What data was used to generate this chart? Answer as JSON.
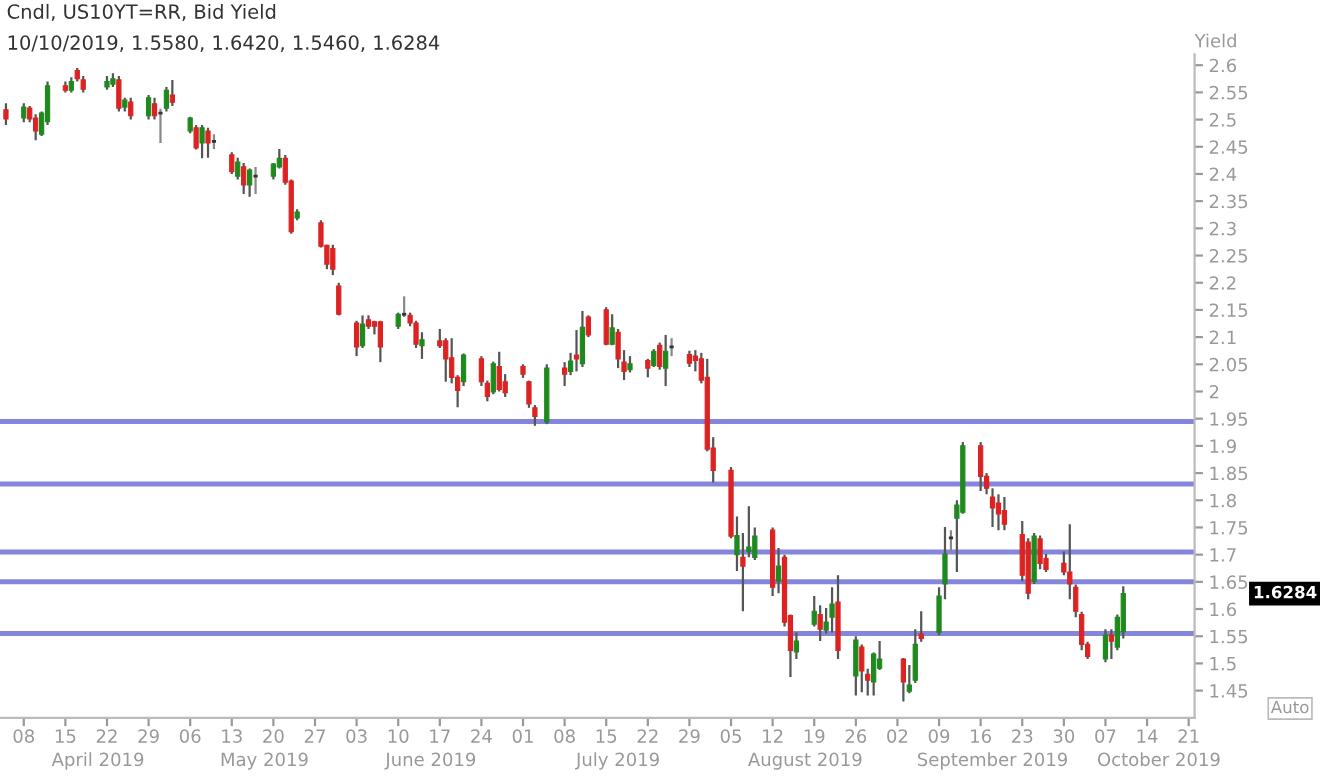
{
  "chart_data": {
    "type": "candlestick",
    "title": "Cndl, US10YT=RR, Bid Yield",
    "subtitle": "10/10/2019, 1.5580, 1.6420, 1.5460, 1.6284",
    "ylabel": "Yield",
    "x": [
      "2019-04-05",
      "2019-04-08",
      "2019-04-09",
      "2019-04-10",
      "2019-04-11",
      "2019-04-12",
      "2019-04-15",
      "2019-04-16",
      "2019-04-17",
      "2019-04-18",
      "2019-04-22",
      "2019-04-23",
      "2019-04-24",
      "2019-04-25",
      "2019-04-26",
      "2019-04-29",
      "2019-04-30",
      "2019-05-01",
      "2019-05-02",
      "2019-05-03",
      "2019-05-06",
      "2019-05-07",
      "2019-05-08",
      "2019-05-09",
      "2019-05-10",
      "2019-05-13",
      "2019-05-14",
      "2019-05-15",
      "2019-05-16",
      "2019-05-17",
      "2019-05-20",
      "2019-05-21",
      "2019-05-22",
      "2019-05-23",
      "2019-05-24",
      "2019-05-28",
      "2019-05-29",
      "2019-05-30",
      "2019-05-31",
      "2019-06-03",
      "2019-06-04",
      "2019-06-05",
      "2019-06-06",
      "2019-06-07",
      "2019-06-10",
      "2019-06-11",
      "2019-06-12",
      "2019-06-13",
      "2019-06-14",
      "2019-06-17",
      "2019-06-18",
      "2019-06-19",
      "2019-06-20",
      "2019-06-21",
      "2019-06-24",
      "2019-06-25",
      "2019-06-26",
      "2019-06-27",
      "2019-06-28",
      "2019-07-01",
      "2019-07-02",
      "2019-07-03",
      "2019-07-05",
      "2019-07-08",
      "2019-07-09",
      "2019-07-10",
      "2019-07-11",
      "2019-07-12",
      "2019-07-15",
      "2019-07-16",
      "2019-07-17",
      "2019-07-18",
      "2019-07-19",
      "2019-07-22",
      "2019-07-23",
      "2019-07-24",
      "2019-07-25",
      "2019-07-26",
      "2019-07-29",
      "2019-07-30",
      "2019-07-31",
      "2019-08-01",
      "2019-08-02",
      "2019-08-05",
      "2019-08-06",
      "2019-08-07",
      "2019-08-08",
      "2019-08-09",
      "2019-08-12",
      "2019-08-13",
      "2019-08-14",
      "2019-08-15",
      "2019-08-16",
      "2019-08-19",
      "2019-08-20",
      "2019-08-21",
      "2019-08-22",
      "2019-08-23",
      "2019-08-26",
      "2019-08-27",
      "2019-08-28",
      "2019-08-29",
      "2019-08-30",
      "2019-09-03",
      "2019-09-04",
      "2019-09-05",
      "2019-09-06",
      "2019-09-09",
      "2019-09-10",
      "2019-09-11",
      "2019-09-12",
      "2019-09-13",
      "2019-09-16",
      "2019-09-17",
      "2019-09-18",
      "2019-09-19",
      "2019-09-20",
      "2019-09-23",
      "2019-09-24",
      "2019-09-25",
      "2019-09-26",
      "2019-09-27",
      "2019-09-30",
      "2019-10-01",
      "2019-10-02",
      "2019-10-03",
      "2019-10-04",
      "2019-10-07",
      "2019-10-08",
      "2019-10-09",
      "2019-10-10"
    ],
    "ohlc": [
      [
        2.518,
        2.53,
        2.49,
        2.501
      ],
      [
        2.503,
        2.53,
        2.495,
        2.523
      ],
      [
        2.521,
        2.525,
        2.495,
        2.501
      ],
      [
        2.503,
        2.51,
        2.462,
        2.479
      ],
      [
        2.473,
        2.515,
        2.47,
        2.512
      ],
      [
        2.496,
        2.57,
        2.49,
        2.562
      ],
      [
        2.562,
        2.57,
        2.55,
        2.554
      ],
      [
        2.554,
        2.578,
        2.55,
        2.57
      ],
      [
        2.59,
        2.595,
        2.57,
        2.575
      ],
      [
        2.573,
        2.58,
        2.55,
        2.556
      ],
      [
        2.56,
        2.58,
        2.555,
        2.57
      ],
      [
        2.565,
        2.585,
        2.56,
        2.575
      ],
      [
        2.573,
        2.58,
        2.515,
        2.521
      ],
      [
        2.523,
        2.54,
        2.515,
        2.536
      ],
      [
        2.532,
        2.54,
        2.5,
        2.507
      ],
      [
        2.507,
        2.545,
        2.5,
        2.54
      ],
      [
        2.529,
        2.54,
        2.5,
        2.507
      ],
      [
        2.512,
        2.52,
        2.457,
        2.512
      ],
      [
        2.521,
        2.56,
        2.515,
        2.554
      ],
      [
        2.545,
        2.573,
        2.525,
        2.532
      ],
      [
        2.479,
        2.505,
        2.475,
        2.503
      ],
      [
        2.485,
        2.49,
        2.445,
        2.448
      ],
      [
        2.457,
        2.49,
        2.429,
        2.485
      ],
      [
        2.479,
        2.485,
        2.43,
        2.457
      ],
      [
        2.46,
        2.473,
        2.446,
        2.46
      ],
      [
        2.435,
        2.44,
        2.4,
        2.404
      ],
      [
        2.396,
        2.43,
        2.39,
        2.422
      ],
      [
        2.413,
        2.42,
        2.363,
        2.38
      ],
      [
        2.38,
        2.41,
        2.358,
        2.407
      ],
      [
        2.396,
        2.413,
        2.363,
        2.396
      ],
      [
        2.396,
        2.42,
        2.39,
        2.418
      ],
      [
        2.413,
        2.446,
        2.41,
        2.429
      ],
      [
        2.429,
        2.435,
        2.38,
        2.385
      ],
      [
        2.387,
        2.39,
        2.29,
        2.294
      ],
      [
        2.319,
        2.335,
        2.315,
        2.33
      ],
      [
        2.31,
        2.315,
        2.265,
        2.267
      ],
      [
        2.269,
        2.27,
        2.225,
        2.234
      ],
      [
        2.263,
        2.27,
        2.214,
        2.225
      ],
      [
        2.194,
        2.2,
        2.14,
        2.142
      ],
      [
        2.126,
        2.13,
        2.065,
        2.082
      ],
      [
        2.084,
        2.14,
        2.08,
        2.124
      ],
      [
        2.132,
        2.14,
        2.115,
        2.12
      ],
      [
        2.128,
        2.13,
        2.105,
        2.12
      ],
      [
        2.128,
        2.13,
        2.054,
        2.082
      ],
      [
        2.12,
        2.145,
        2.115,
        2.142
      ],
      [
        2.142,
        2.175,
        2.137,
        2.142
      ],
      [
        2.14,
        2.145,
        2.12,
        2.126
      ],
      [
        2.126,
        2.13,
        2.08,
        2.087
      ],
      [
        2.084,
        2.109,
        2.06,
        2.095
      ],
      [
        2.093,
        2.115,
        2.08,
        2.084
      ],
      [
        2.093,
        2.098,
        2.018,
        2.06
      ],
      [
        2.062,
        2.098,
        2.015,
        2.026
      ],
      [
        2.026,
        2.03,
        1.971,
        2.002
      ],
      [
        2.018,
        2.07,
        2.01,
        2.067
      ],
      [
        2.06,
        2.065,
        2.01,
        2.018
      ],
      [
        2.015,
        2.02,
        1.982,
        1.991
      ],
      [
        1.999,
        2.055,
        1.995,
        2.051
      ],
      [
        2.046,
        2.073,
        2.0,
        2.004
      ],
      [
        2.018,
        2.032,
        1.99,
        1.998
      ],
      [
        2.046,
        2.05,
        2.025,
        2.032
      ],
      [
        2.018,
        2.02,
        1.97,
        1.977
      ],
      [
        1.97,
        1.975,
        1.937,
        1.954
      ],
      [
        1.944,
        2.05,
        1.94,
        2.043
      ],
      [
        2.043,
        2.054,
        2.01,
        2.032
      ],
      [
        2.037,
        2.071,
        2.03,
        2.056
      ],
      [
        2.067,
        2.113,
        2.037,
        2.06
      ],
      [
        2.051,
        2.148,
        2.045,
        2.118
      ],
      [
        2.137,
        2.14,
        2.1,
        2.104
      ],
      [
        2.15,
        2.155,
        2.085,
        2.087
      ],
      [
        2.087,
        2.142,
        2.085,
        2.117
      ],
      [
        2.109,
        2.115,
        2.043,
        2.06
      ],
      [
        2.054,
        2.076,
        2.021,
        2.037
      ],
      [
        2.04,
        2.065,
        2.035,
        2.051
      ],
      [
        2.057,
        2.06,
        2.026,
        2.043
      ],
      [
        2.048,
        2.078,
        2.045,
        2.074
      ],
      [
        2.085,
        2.09,
        2.04,
        2.046
      ],
      [
        2.043,
        2.104,
        2.01,
        2.074
      ],
      [
        2.082,
        2.098,
        2.065,
        2.082
      ],
      [
        2.068,
        2.075,
        2.045,
        2.052
      ],
      [
        2.065,
        2.076,
        2.037,
        2.057
      ],
      [
        2.06,
        2.071,
        2.015,
        2.021
      ],
      [
        2.026,
        2.06,
        1.89,
        1.894
      ],
      [
        1.896,
        1.916,
        1.833,
        1.855
      ],
      [
        1.855,
        1.861,
        1.73,
        1.734
      ],
      [
        1.7,
        1.77,
        1.67,
        1.735
      ],
      [
        1.695,
        1.74,
        1.596,
        1.679
      ],
      [
        1.706,
        1.789,
        1.695,
        1.714
      ],
      [
        1.695,
        1.75,
        1.69,
        1.734
      ],
      [
        1.745,
        1.75,
        1.624,
        1.64
      ],
      [
        1.651,
        1.712,
        1.629,
        1.679
      ],
      [
        1.695,
        1.7,
        1.568,
        1.576
      ],
      [
        1.588,
        1.59,
        1.475,
        1.524
      ],
      [
        1.521,
        1.557,
        1.508,
        1.541
      ],
      [
        1.572,
        1.624,
        1.568,
        1.596
      ],
      [
        1.59,
        1.607,
        1.541,
        1.563
      ],
      [
        1.561,
        1.602,
        1.555,
        1.576
      ],
      [
        1.585,
        1.64,
        1.557,
        1.609
      ],
      [
        1.613,
        1.662,
        1.508,
        1.524
      ],
      [
        1.477,
        1.55,
        1.441,
        1.543
      ],
      [
        1.53,
        1.535,
        1.447,
        1.486
      ],
      [
        1.48,
        1.49,
        1.441,
        1.469
      ],
      [
        1.466,
        1.52,
        1.441,
        1.517
      ],
      [
        1.491,
        1.541,
        1.488,
        1.508
      ],
      [
        1.508,
        1.51,
        1.43,
        1.466
      ],
      [
        1.449,
        1.497,
        1.445,
        1.46
      ],
      [
        1.469,
        1.563,
        1.464,
        1.535
      ],
      [
        1.554,
        1.596,
        1.54,
        1.546
      ],
      [
        1.557,
        1.64,
        1.552,
        1.624
      ],
      [
        1.646,
        1.751,
        1.618,
        1.701
      ],
      [
        1.731,
        1.745,
        1.706,
        1.731
      ],
      [
        1.767,
        1.8,
        1.668,
        1.791
      ],
      [
        1.778,
        1.907,
        1.775,
        1.9
      ],
      [
        1.9,
        1.907,
        1.817,
        1.844
      ],
      [
        1.844,
        1.85,
        1.811,
        1.822
      ],
      [
        1.806,
        1.822,
        1.751,
        1.786
      ],
      [
        1.795,
        1.811,
        1.745,
        1.775
      ],
      [
        1.781,
        1.806,
        1.745,
        1.756
      ],
      [
        1.737,
        1.762,
        1.651,
        1.662
      ],
      [
        1.723,
        1.73,
        1.618,
        1.629
      ],
      [
        1.651,
        1.74,
        1.646,
        1.734
      ],
      [
        1.729,
        1.735,
        1.673,
        1.684
      ],
      [
        1.693,
        1.701,
        1.668,
        1.673
      ],
      [
        1.684,
        1.706,
        1.662,
        1.668
      ],
      [
        1.668,
        1.756,
        1.618,
        1.646
      ],
      [
        1.64,
        1.645,
        1.585,
        1.596
      ],
      [
        1.59,
        1.595,
        1.524,
        1.535
      ],
      [
        1.535,
        1.54,
        1.508,
        1.513
      ],
      [
        1.508,
        1.563,
        1.502,
        1.552
      ],
      [
        1.552,
        1.563,
        1.508,
        1.541
      ],
      [
        1.53,
        1.59,
        1.524,
        1.585
      ],
      [
        1.558,
        1.642,
        1.546,
        1.6284
      ]
    ],
    "xlim": [
      "2019-04-04",
      "2019-10-22"
    ],
    "ylim": [
      1.4,
      2.62
    ],
    "xticks": [
      {
        "value": "2019-04-08",
        "label": "08"
      },
      {
        "value": "2019-04-15",
        "label": "15"
      },
      {
        "value": "2019-04-22",
        "label": "22"
      },
      {
        "value": "2019-04-29",
        "label": "29"
      },
      {
        "value": "2019-05-06",
        "label": "06"
      },
      {
        "value": "2019-05-13",
        "label": "13"
      },
      {
        "value": "2019-05-20",
        "label": "20"
      },
      {
        "value": "2019-05-27",
        "label": "27"
      },
      {
        "value": "2019-06-03",
        "label": "03"
      },
      {
        "value": "2019-06-10",
        "label": "10"
      },
      {
        "value": "2019-06-17",
        "label": "17"
      },
      {
        "value": "2019-06-24",
        "label": "24"
      },
      {
        "value": "2019-07-01",
        "label": "01"
      },
      {
        "value": "2019-07-08",
        "label": "08"
      },
      {
        "value": "2019-07-15",
        "label": "15"
      },
      {
        "value": "2019-07-22",
        "label": "22"
      },
      {
        "value": "2019-07-29",
        "label": "29"
      },
      {
        "value": "2019-08-05",
        "label": "05"
      },
      {
        "value": "2019-08-12",
        "label": "12"
      },
      {
        "value": "2019-08-19",
        "label": "19"
      },
      {
        "value": "2019-08-26",
        "label": "26"
      },
      {
        "value": "2019-09-02",
        "label": "02"
      },
      {
        "value": "2019-09-09",
        "label": "09"
      },
      {
        "value": "2019-09-16",
        "label": "16"
      },
      {
        "value": "2019-09-23",
        "label": "23"
      },
      {
        "value": "2019-09-30",
        "label": "30"
      },
      {
        "value": "2019-10-07",
        "label": "07"
      },
      {
        "value": "2019-10-14",
        "label": "14"
      },
      {
        "value": "2019-10-21",
        "label": "21"
      }
    ],
    "yticks": [
      1.45,
      1.5,
      1.55,
      1.6,
      1.65,
      1.7,
      1.75,
      1.8,
      1.85,
      1.9,
      1.95,
      2,
      2.05,
      2.1,
      2.15,
      2.2,
      2.25,
      2.3,
      2.35,
      2.4,
      2.45,
      2.5,
      2.55,
      2.6
    ],
    "ref_lines": [
      {
        "axis": "y",
        "value": 1.945,
        "color": "#8585dd"
      },
      {
        "axis": "y",
        "value": 1.83,
        "color": "#8585dd"
      },
      {
        "axis": "y",
        "value": 1.705,
        "color": "#8585dd"
      },
      {
        "axis": "y",
        "value": 1.65,
        "color": "#8585dd"
      },
      {
        "axis": "y",
        "value": 1.555,
        "color": "#8585dd"
      }
    ],
    "annotations": [
      "April 2019",
      "May 2019",
      "June 2019",
      "July 2019",
      "August 2019",
      "September 2019",
      "October 2019",
      "1.6284",
      "Auto"
    ],
    "grid": false
  }
}
